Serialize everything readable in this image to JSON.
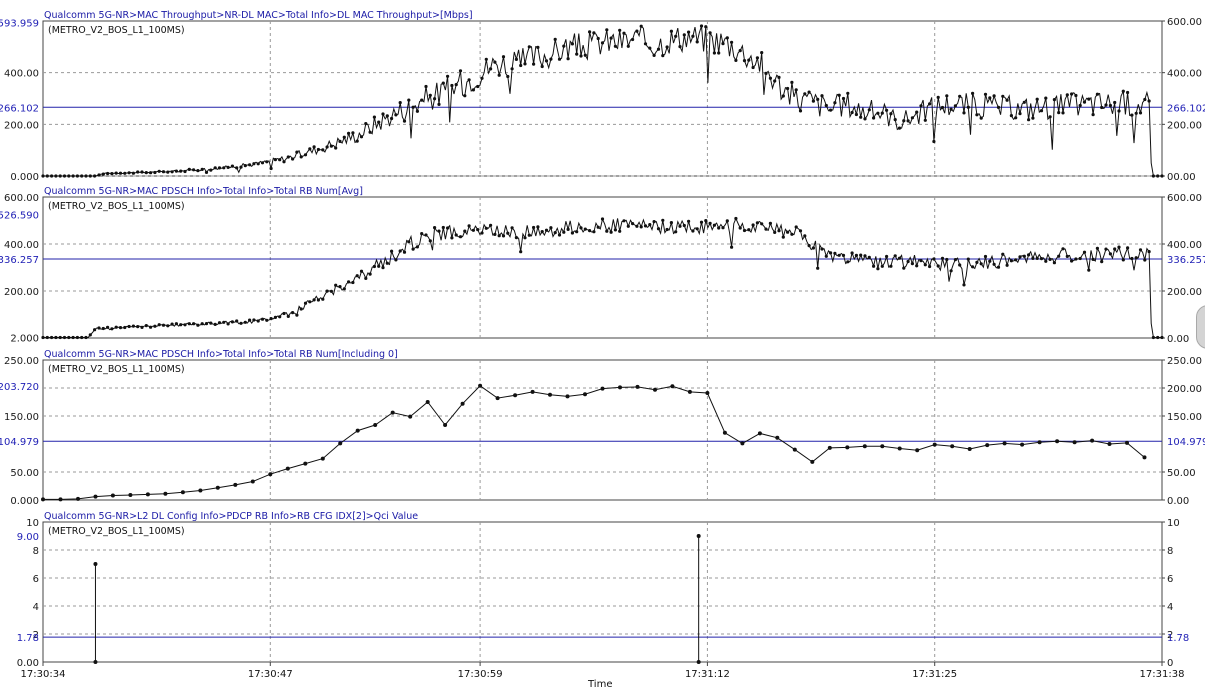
{
  "x_axis": {
    "label": "Time",
    "ticks": [
      "17:30:34",
      "17:30:47",
      "17:30:59",
      "17:31:12",
      "17:31:25",
      "17:31:38"
    ]
  },
  "chart_data": [
    {
      "type": "line",
      "title": "Qualcomm 5G-NR>MAC Throughput>NR-DL MAC>Total Info>DL MAC Throughput>[Mbps]",
      "legend": "(METRO_V2_BOS_L1_100MS)",
      "left_ticks": [
        "0.000",
        "200.00",
        "400.00"
      ],
      "right_ticks": [
        "00.00",
        "200.00",
        "400.00",
        "600.00"
      ],
      "max_label": "593.959",
      "avg_label": "266.102",
      "ylim": [
        0,
        600
      ],
      "max_value": 593.959,
      "average": 266.102,
      "x_range_s": [
        0,
        64
      ],
      "keypoints": [
        [
          0,
          0
        ],
        [
          3,
          0
        ],
        [
          3.5,
          10
        ],
        [
          6,
          14
        ],
        [
          8,
          20
        ],
        [
          10,
          30
        ],
        [
          12,
          45
        ],
        [
          14,
          70
        ],
        [
          16,
          110
        ],
        [
          18,
          160
        ],
        [
          19,
          200
        ],
        [
          20,
          240
        ],
        [
          21,
          270
        ],
        [
          22,
          300
        ],
        [
          23,
          330
        ],
        [
          24,
          360
        ],
        [
          25,
          400
        ],
        [
          26,
          440
        ],
        [
          27,
          430
        ],
        [
          28,
          460
        ],
        [
          29,
          470
        ],
        [
          30,
          500
        ],
        [
          31,
          500
        ],
        [
          32,
          520
        ],
        [
          33,
          520
        ],
        [
          34,
          530
        ],
        [
          35,
          510
        ],
        [
          36,
          530
        ],
        [
          37,
          540
        ],
        [
          38,
          530
        ],
        [
          39,
          520
        ],
        [
          40,
          480
        ],
        [
          41,
          440
        ],
        [
          42,
          360
        ],
        [
          43,
          300
        ],
        [
          44,
          290
        ],
        [
          45,
          260
        ],
        [
          46,
          280
        ],
        [
          47,
          250
        ],
        [
          48,
          250
        ],
        [
          49,
          210
        ],
        [
          50,
          240
        ],
        [
          51,
          270
        ],
        [
          52,
          280
        ],
        [
          54,
          270
        ],
        [
          56,
          260
        ],
        [
          58,
          270
        ],
        [
          60,
          280
        ],
        [
          62,
          280
        ],
        [
          63.3,
          280
        ],
        [
          63.4,
          0
        ],
        [
          64,
          0
        ]
      ],
      "noise": 55
    },
    {
      "type": "line",
      "title": "Qualcomm 5G-NR>MAC PDSCH Info>Total Info>Total RB Num[Avg]",
      "legend": "(METRO_V2_BOS_L1_100MS)",
      "left_ticks": [
        "2.000",
        "200.00",
        "400.00",
        "600.00"
      ],
      "right_ticks": [
        "0.00",
        "200.00",
        "400.00",
        "600.00"
      ],
      "max_label": "526.590",
      "avg_label": "336.257",
      "ylim": [
        0,
        600
      ],
      "max_value": 526.59,
      "average": 336.257,
      "x_range_s": [
        0,
        64
      ],
      "keypoints": [
        [
          0,
          2
        ],
        [
          2,
          2
        ],
        [
          2.6,
          2
        ],
        [
          3,
          40
        ],
        [
          6,
          50
        ],
        [
          9,
          60
        ],
        [
          12,
          70
        ],
        [
          14,
          100
        ],
        [
          15,
          140
        ],
        [
          16,
          180
        ],
        [
          17,
          220
        ],
        [
          18,
          250
        ],
        [
          19,
          300
        ],
        [
          20,
          350
        ],
        [
          21,
          400
        ],
        [
          22,
          440
        ],
        [
          25,
          460
        ],
        [
          28,
          450
        ],
        [
          30,
          470
        ],
        [
          33,
          480
        ],
        [
          36,
          470
        ],
        [
          40,
          480
        ],
        [
          43,
          450
        ],
        [
          45,
          350
        ],
        [
          48,
          320
        ],
        [
          50,
          330
        ],
        [
          52,
          310
        ],
        [
          55,
          330
        ],
        [
          57,
          350
        ],
        [
          60,
          350
        ],
        [
          62,
          360
        ],
        [
          63.3,
          360
        ],
        [
          63.4,
          2
        ],
        [
          64,
          2
        ]
      ],
      "noise": 30
    },
    {
      "type": "line",
      "title": "Qualcomm 5G-NR>MAC PDSCH Info>Total Info>Total RB Num[Including 0]",
      "legend": "(METRO_V2_BOS_L1_100MS)",
      "left_ticks": [
        "0.000",
        "50.00",
        "150.00",
        "250.00"
      ],
      "right_ticks": [
        "0.00",
        "50.00",
        "150.00",
        "200.00",
        "250.00"
      ],
      "max_label": "203.720",
      "avg_label": "104.979",
      "ylim": [
        0,
        250
      ],
      "max_value": 203.72,
      "average": 104.979,
      "x": [
        0,
        1,
        2,
        3,
        4,
        5,
        6,
        7,
        8,
        9,
        10,
        11,
        12,
        13,
        14,
        15,
        16,
        17,
        18,
        19,
        20,
        21,
        22,
        23,
        24,
        25,
        26,
        27,
        28,
        29,
        30,
        31,
        32,
        33,
        34,
        35,
        36,
        37,
        38,
        39,
        40,
        41,
        42,
        43,
        44,
        45,
        46,
        47,
        48,
        49,
        50,
        51,
        52,
        53,
        54,
        55,
        56,
        57,
        58,
        59,
        60,
        61,
        62,
        63
      ],
      "values": [
        1,
        1,
        2,
        6,
        8,
        9,
        10,
        11,
        14,
        17,
        22,
        27,
        33,
        46,
        56,
        65,
        74,
        101,
        124,
        134,
        156,
        149,
        175,
        134,
        172,
        204,
        182,
        187,
        193,
        188,
        185,
        189,
        199,
        201,
        202,
        197,
        203,
        193,
        191,
        120,
        101,
        119,
        111,
        90,
        68,
        93,
        94,
        96,
        96,
        92,
        89,
        99,
        96,
        91,
        98,
        101,
        99,
        103,
        105,
        103,
        106,
        100,
        102,
        76
      ]
    },
    {
      "type": "line",
      "title": "Qualcomm 5G-NR>L2 DL Config Info>PDCP RB Info>RB CFG IDX[2]>Qci Value",
      "legend": "(METRO_V2_BOS_L1_100MS)",
      "left_ticks": [
        "0.00",
        "2",
        "4",
        "6",
        "8",
        "10"
      ],
      "right_ticks": [
        "0",
        "2",
        "4",
        "6",
        "8",
        "10"
      ],
      "max_label": "9.00",
      "avg_label": "1.78",
      "ylim": [
        0,
        10
      ],
      "max_value": 9,
      "average": 1.78,
      "spikes": [
        {
          "x": 3,
          "value": 7
        },
        {
          "x": 37.5,
          "value": 9
        }
      ]
    }
  ]
}
